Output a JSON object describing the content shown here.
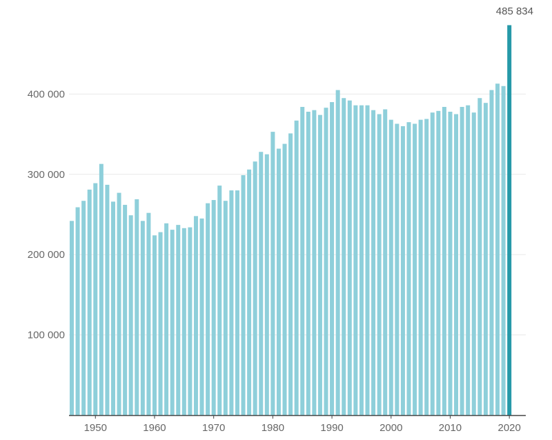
{
  "chart_data": {
    "type": "bar",
    "title": "",
    "xlabel": "",
    "ylabel": "",
    "grid": true,
    "ylim": [
      0,
      500000
    ],
    "y_ticks": [
      100000,
      200000,
      300000,
      400000
    ],
    "y_tick_labels": [
      "100 000",
      "200 000",
      "300 000",
      "400 000"
    ],
    "x_ticks": [
      1950,
      1960,
      1970,
      1980,
      1990,
      2000,
      2010,
      2020
    ],
    "x_tick_labels": [
      "1950",
      "1960",
      "1970",
      "1980",
      "1990",
      "2000",
      "2010",
      "2020"
    ],
    "colors": {
      "bar": "#8ecfda",
      "highlight": "#2699a8",
      "grid": "#e8e8e8",
      "axis": "#444444"
    },
    "annotation": {
      "x": 2020,
      "text": "485 834"
    },
    "x": [
      1946,
      1947,
      1948,
      1949,
      1950,
      1951,
      1952,
      1953,
      1954,
      1955,
      1956,
      1957,
      1958,
      1959,
      1960,
      1961,
      1962,
      1963,
      1964,
      1965,
      1966,
      1967,
      1968,
      1969,
      1970,
      1971,
      1972,
      1973,
      1974,
      1975,
      1976,
      1977,
      1978,
      1979,
      1980,
      1981,
      1982,
      1983,
      1984,
      1985,
      1986,
      1987,
      1988,
      1989,
      1990,
      1991,
      1992,
      1993,
      1994,
      1995,
      1996,
      1997,
      1998,
      1999,
      2000,
      2001,
      2002,
      2003,
      2004,
      2005,
      2006,
      2007,
      2008,
      2009,
      2010,
      2011,
      2012,
      2013,
      2014,
      2015,
      2016,
      2017,
      2018,
      2019,
      2020
    ],
    "values": [
      242000,
      259000,
      267000,
      281000,
      289000,
      313000,
      287000,
      266000,
      277000,
      262000,
      249000,
      269000,
      242000,
      252000,
      224000,
      228000,
      239000,
      231000,
      237000,
      233000,
      234000,
      248000,
      245000,
      264000,
      268000,
      286000,
      267000,
      280000,
      280000,
      299000,
      306000,
      316000,
      328000,
      325000,
      353000,
      332000,
      338000,
      351000,
      367000,
      384000,
      378000,
      380000,
      374000,
      383000,
      390000,
      405000,
      395000,
      392000,
      386000,
      386000,
      386000,
      380000,
      375000,
      381000,
      368000,
      363000,
      360000,
      365000,
      363000,
      368000,
      369000,
      377000,
      379000,
      384000,
      378000,
      375000,
      384000,
      386000,
      377000,
      395000,
      389000,
      405000,
      413000,
      410000,
      485834
    ]
  }
}
